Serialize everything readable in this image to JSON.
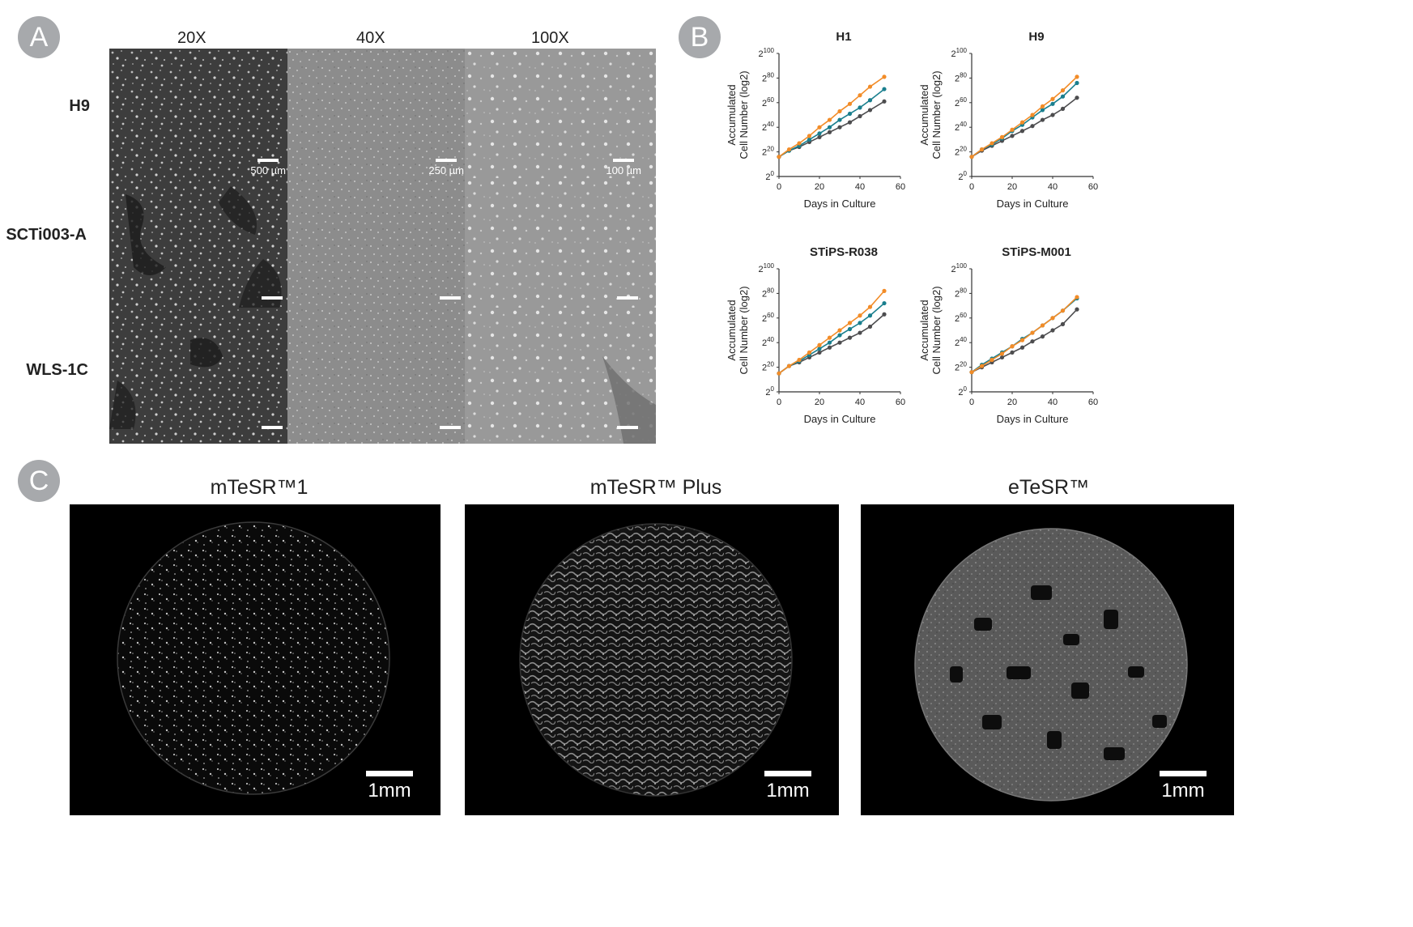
{
  "panel_labels": {
    "a": "A",
    "b": "B",
    "c": "C"
  },
  "panel_a": {
    "magnifications": [
      "20X",
      "40X",
      "100X"
    ],
    "rows": [
      "H9",
      "SCTi003-A",
      "WLS-1C"
    ],
    "scale_bars": [
      "500 µm",
      "250 µm",
      "100 µm"
    ]
  },
  "panel_b": {
    "common": {
      "xlabel": "Days in Culture",
      "ylabel_line1": "Accumulated",
      "ylabel_line2": "Cell Number (log2)",
      "y_base": "2",
      "y_exponents": [
        "0",
        "20",
        "40",
        "60",
        "80",
        "100"
      ],
      "x_ticks": [
        "0",
        "20",
        "40",
        "60"
      ]
    },
    "colors": {
      "orange": "#f28c28",
      "teal": "#1a7f8e",
      "gray": "#4d4d4f"
    }
  },
  "chart_data": [
    {
      "type": "line",
      "title": "H1",
      "xlabel": "Days in Culture",
      "ylabel": "Accumulated Cell Number (log2)",
      "xlim": [
        0,
        60
      ],
      "ylim": [
        0,
        100
      ],
      "yscale": "log2 exponent",
      "x": [
        0,
        5,
        10,
        15,
        20,
        25,
        30,
        35,
        40,
        45,
        52
      ],
      "series": [
        {
          "color": "orange",
          "values": [
            16,
            22,
            27,
            33,
            40,
            46,
            53,
            59,
            66,
            73,
            81
          ]
        },
        {
          "color": "teal",
          "values": [
            16,
            21,
            25,
            30,
            35,
            40,
            46,
            51,
            56,
            62,
            71
          ]
        },
        {
          "color": "gray",
          "values": [
            16,
            21,
            24,
            28,
            32,
            36,
            40,
            44,
            49,
            54,
            61
          ]
        }
      ]
    },
    {
      "type": "line",
      "title": "H9",
      "xlabel": "Days in Culture",
      "ylabel": "Accumulated Cell Number (log2)",
      "xlim": [
        0,
        60
      ],
      "ylim": [
        0,
        100
      ],
      "yscale": "log2 exponent",
      "x": [
        0,
        5,
        10,
        15,
        20,
        25,
        30,
        35,
        40,
        45,
        52
      ],
      "series": [
        {
          "color": "orange",
          "values": [
            16,
            22,
            27,
            32,
            38,
            44,
            50,
            57,
            63,
            70,
            81
          ]
        },
        {
          "color": "teal",
          "values": [
            16,
            22,
            26,
            31,
            37,
            42,
            48,
            54,
            59,
            65,
            76
          ]
        },
        {
          "color": "gray",
          "values": [
            16,
            21,
            25,
            29,
            33,
            37,
            41,
            46,
            50,
            55,
            64
          ]
        }
      ]
    },
    {
      "type": "line",
      "title": "STiPS-R038",
      "xlabel": "Days in Culture",
      "ylabel": "Accumulated Cell Number (log2)",
      "xlim": [
        0,
        60
      ],
      "ylim": [
        0,
        100
      ],
      "yscale": "log2 exponent",
      "x": [
        0,
        5,
        10,
        15,
        20,
        25,
        30,
        35,
        40,
        45,
        52
      ],
      "series": [
        {
          "color": "orange",
          "values": [
            15,
            21,
            26,
            32,
            38,
            44,
            50,
            56,
            62,
            69,
            82
          ]
        },
        {
          "color": "teal",
          "values": [
            15,
            21,
            25,
            30,
            35,
            40,
            46,
            51,
            56,
            62,
            72
          ]
        },
        {
          "color": "gray",
          "values": [
            15,
            21,
            24,
            28,
            32,
            36,
            40,
            44,
            48,
            53,
            63
          ]
        }
      ]
    },
    {
      "type": "line",
      "title": "STiPS-M001",
      "xlabel": "Days in Culture",
      "ylabel": "Accumulated Cell Number (log2)",
      "xlim": [
        0,
        60
      ],
      "ylim": [
        0,
        100
      ],
      "yscale": "log2 exponent",
      "x": [
        0,
        5,
        10,
        15,
        20,
        25,
        30,
        35,
        40,
        45,
        52
      ],
      "series": [
        {
          "color": "orange",
          "values": [
            16,
            21,
            26,
            31,
            37,
            42,
            48,
            54,
            60,
            66,
            77
          ]
        },
        {
          "color": "teal",
          "values": [
            16,
            22,
            27,
            32,
            37,
            43,
            48,
            54,
            60,
            66,
            76
          ]
        },
        {
          "color": "gray",
          "values": [
            16,
            20,
            24,
            28,
            32,
            36,
            41,
            45,
            50,
            55,
            67
          ]
        }
      ]
    }
  ],
  "panel_c": {
    "titles": [
      "mTeSR™1",
      "mTeSR™ Plus",
      "eTeSR™"
    ],
    "scale_bar": "1mm"
  }
}
